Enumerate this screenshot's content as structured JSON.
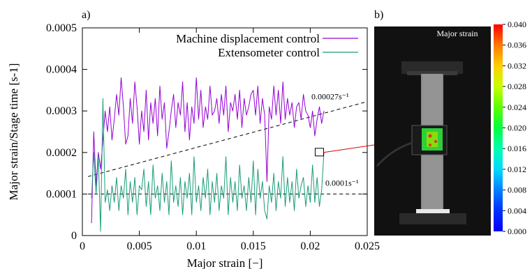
{
  "chart_data": {
    "type": "line",
    "panel_label": "a)",
    "xlabel": "Major strain [−]",
    "ylabel": "Major strain/Stage time [s-1]",
    "xlim": [
      0,
      0.025
    ],
    "ylim": [
      0,
      0.0005
    ],
    "x_ticks": [
      "0",
      "0.005",
      "0.01",
      "0.015",
      "0.02",
      "0.025"
    ],
    "y_ticks": [
      "0",
      "0.0001",
      "0.0002",
      "0.0003",
      "0.0004",
      "0.0005"
    ],
    "legend_position": "top-right",
    "series": [
      {
        "name": "Machine displacement control",
        "color": "#9400d3",
        "x": [
          0.0008,
          0.001,
          0.0012,
          0.0014,
          0.0016,
          0.0018,
          0.002,
          0.0022,
          0.0024,
          0.0026,
          0.0028,
          0.003,
          0.0032,
          0.0034,
          0.0036,
          0.0038,
          0.004,
          0.0042,
          0.0044,
          0.0046,
          0.0048,
          0.005,
          0.0052,
          0.0054,
          0.0056,
          0.0058,
          0.006,
          0.0062,
          0.0064,
          0.0066,
          0.0068,
          0.007,
          0.0072,
          0.0074,
          0.0076,
          0.0078,
          0.008,
          0.0082,
          0.0084,
          0.0086,
          0.0088,
          0.009,
          0.0092,
          0.0094,
          0.0096,
          0.0098,
          0.01,
          0.0102,
          0.0104,
          0.0106,
          0.0108,
          0.011,
          0.0112,
          0.0114,
          0.0116,
          0.0118,
          0.012,
          0.0122,
          0.0124,
          0.0126,
          0.0128,
          0.013,
          0.0132,
          0.0134,
          0.0136,
          0.0138,
          0.014,
          0.0142,
          0.0144,
          0.0146,
          0.0148,
          0.015,
          0.0152,
          0.0154,
          0.0156,
          0.0158,
          0.016,
          0.0162,
          0.0164,
          0.0166,
          0.0168,
          0.017,
          0.0172,
          0.0174,
          0.0176,
          0.0178,
          0.018,
          0.0182,
          0.0184,
          0.0186,
          0.0188,
          0.019,
          0.0192,
          0.0194,
          0.0196,
          0.0198,
          0.02,
          0.0202,
          0.0204,
          0.0206,
          0.0208,
          0.021,
          0.0212
        ],
        "y": [
          3e-05,
          0.00025,
          0.00012,
          0.0002,
          0.00016,
          0.00023,
          0.0003,
          0.00025,
          0.00031,
          0.00023,
          0.00028,
          0.00034,
          0.00029,
          0.00038,
          0.00031,
          0.00022,
          0.00024,
          0.00033,
          0.00027,
          0.00037,
          0.00031,
          0.00022,
          0.0003,
          0.00025,
          0.00035,
          0.00023,
          0.00032,
          0.00027,
          0.00033,
          0.00024,
          0.00036,
          0.00028,
          0.00032,
          0.00021,
          0.00025,
          0.0003,
          0.00034,
          0.00026,
          0.00032,
          0.00029,
          0.00037,
          0.00025,
          0.00032,
          0.00023,
          0.00031,
          0.00027,
          0.00038,
          0.00028,
          0.00035,
          0.00026,
          0.00031,
          0.00028,
          0.00036,
          0.00029,
          0.0003,
          0.00033,
          0.00027,
          0.00034,
          0.00029,
          0.00036,
          0.00025,
          0.00032,
          0.0003,
          0.00034,
          0.00028,
          0.00035,
          0.00026,
          0.00033,
          0.00029,
          0.00031,
          0.00034,
          0.00035,
          0.00029,
          0.00036,
          0.00027,
          0.00033,
          0.00029,
          0.00013,
          0.00031,
          0.00028,
          0.00036,
          0.00029,
          0.00035,
          0.00027,
          0.00037,
          0.00028,
          0.00033,
          0.00029,
          0.00032,
          0.00026,
          0.00031,
          0.00032,
          0.00028,
          0.00034,
          0.0003,
          0.00029,
          0.00026,
          0.0003,
          0.00024,
          0.00028,
          0.00031,
          0.00027,
          0.0003
        ]
      },
      {
        "name": "Extensometer control",
        "color": "#1a9b7a",
        "x": [
          0.0008,
          0.001,
          0.0012,
          0.0014,
          0.0016,
          0.0018,
          0.002,
          0.0022,
          0.0024,
          0.0026,
          0.0028,
          0.003,
          0.0032,
          0.0034,
          0.0036,
          0.0038,
          0.004,
          0.0042,
          0.0044,
          0.0046,
          0.0048,
          0.005,
          0.0052,
          0.0054,
          0.0056,
          0.0058,
          0.006,
          0.0062,
          0.0064,
          0.0066,
          0.0068,
          0.007,
          0.0072,
          0.0074,
          0.0076,
          0.0078,
          0.008,
          0.0082,
          0.0084,
          0.0086,
          0.0088,
          0.009,
          0.0092,
          0.0094,
          0.0096,
          0.0098,
          0.01,
          0.0102,
          0.0104,
          0.0106,
          0.0108,
          0.011,
          0.0112,
          0.0114,
          0.0116,
          0.0118,
          0.012,
          0.0122,
          0.0124,
          0.0126,
          0.0128,
          0.013,
          0.0132,
          0.0134,
          0.0136,
          0.0138,
          0.014,
          0.0142,
          0.0144,
          0.0146,
          0.0148,
          0.015,
          0.0152,
          0.0154,
          0.0156,
          0.0158,
          0.016,
          0.0162,
          0.0164,
          0.0166,
          0.0168,
          0.017,
          0.0172,
          0.0174,
          0.0176,
          0.0178,
          0.018,
          0.0182,
          0.0184,
          0.0186,
          0.0188,
          0.019,
          0.0192,
          0.0194,
          0.0196,
          0.0198,
          0.02,
          0.0202,
          0.0204,
          0.0206,
          0.0208,
          0.021,
          0.0212
        ],
        "y": [
          9e-05,
          0.0002,
          0.0001,
          0.00019,
          1e-05,
          0.00033,
          8e-05,
          0.00011,
          6e-05,
          0.00012,
          8e-05,
          0.00014,
          6e-05,
          0.00012,
          9e-05,
          0.00016,
          5e-05,
          0.00013,
          8e-05,
          0.00014,
          5e-05,
          0.00012,
          0.00011,
          0.00016,
          7e-05,
          0.00013,
          5e-05,
          0.00017,
          9e-05,
          0.00012,
          6e-05,
          0.00015,
          8e-05,
          0.00013,
          5e-05,
          0.00018,
          8e-05,
          0.00012,
          7e-05,
          0.00014,
          5e-05,
          0.00013,
          9e-05,
          0.00015,
          5e-05,
          0.00019,
          8e-05,
          0.00012,
          6e-05,
          0.00014,
          9e-05,
          0.00016,
          5e-05,
          0.00013,
          8e-05,
          0.00015,
          6e-05,
          0.00012,
          9e-05,
          0.00019,
          5e-05,
          0.00014,
          8e-05,
          0.00013,
          6e-05,
          0.00017,
          9e-05,
          0.00012,
          6e-05,
          0.00014,
          8e-05,
          0.00018,
          5e-05,
          0.00016,
          9e-05,
          0.00013,
          6e-05,
          4e-05,
          0.00012,
          8e-05,
          0.00015,
          6e-05,
          0.00013,
          9e-05,
          0.00019,
          7e-05,
          0.00014,
          8e-05,
          0.00013,
          6e-05,
          0.00016,
          9e-05,
          0.00012,
          0.00014,
          7e-05,
          0.00012,
          8e-05,
          0.00017,
          8e-05,
          0.00014,
          7e-05,
          0.00011,
          0.0002
        ]
      }
    ],
    "reference_lines": [
      {
        "label": "0.00027s⁻¹",
        "x": [
          0.0005,
          0.0253
        ],
        "y": [
          0.000142,
          0.000322
        ]
      },
      {
        "label": "0.0001s⁻¹",
        "x": [
          0.0005,
          0.0253
        ],
        "y": [
          0.0001,
          0.0001
        ]
      }
    ],
    "marker_box": {
      "x": 0.0208,
      "y": 0.0002
    }
  },
  "image_panel": {
    "panel_label": "b)",
    "title": "Major strain",
    "colorbar_ticks": [
      "0.040",
      "0.036",
      "0.032",
      "0.028",
      "0.024",
      "0.020",
      "0.016",
      "0.012",
      "0.008",
      "0.004",
      "0.000"
    ],
    "colorbar_colors": [
      "#ff0000",
      "#ff7a00",
      "#ffd000",
      "#c8ff00",
      "#5cff00",
      "#00ff40",
      "#00ffb0",
      "#00d8ff",
      "#0080ff",
      "#0030ff",
      "#0000ff"
    ]
  }
}
